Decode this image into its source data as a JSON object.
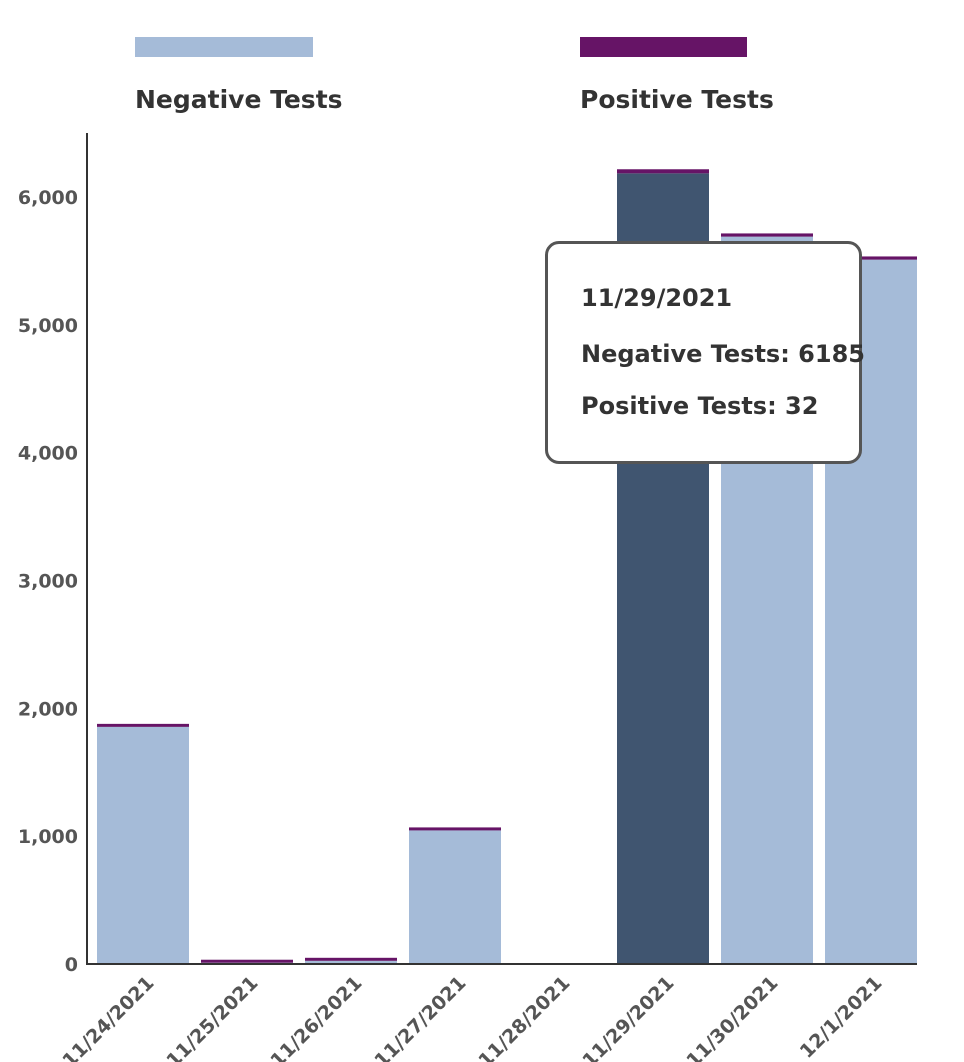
{
  "chart_data": {
    "type": "bar",
    "stacked": true,
    "categories": [
      "11/24/2021",
      "11/25/2021",
      "11/26/2021",
      "11/27/2021",
      "11/28/2021",
      "11/29/2021",
      "11/30/2021",
      "12/1/2021"
    ],
    "series": [
      {
        "name": "Negative Tests",
        "color": "#a5bbd8",
        "values": [
          1855,
          10,
          25,
          1045,
          0,
          6185,
          5690,
          5510
        ]
      },
      {
        "name": "Positive Tests",
        "color": "#661466",
        "values": [
          12,
          2,
          3,
          15,
          0,
          32,
          25,
          25
        ]
      }
    ],
    "highlight": {
      "category": "11/29/2021",
      "color": "#405570"
    },
    "y_ticks": [
      "0",
      "1,000",
      "2,000",
      "3,000",
      "4,000",
      "5,000",
      "6,000"
    ],
    "y_tick_values": [
      0,
      1000,
      2000,
      3000,
      4000,
      5000,
      6000
    ],
    "ylim": [
      0,
      6500
    ],
    "legend_position": "top",
    "grid": false
  },
  "tooltip": {
    "date": "11/29/2021",
    "negative_label": "Negative Tests: 6185",
    "positive_label": "Positive Tests: 32"
  }
}
